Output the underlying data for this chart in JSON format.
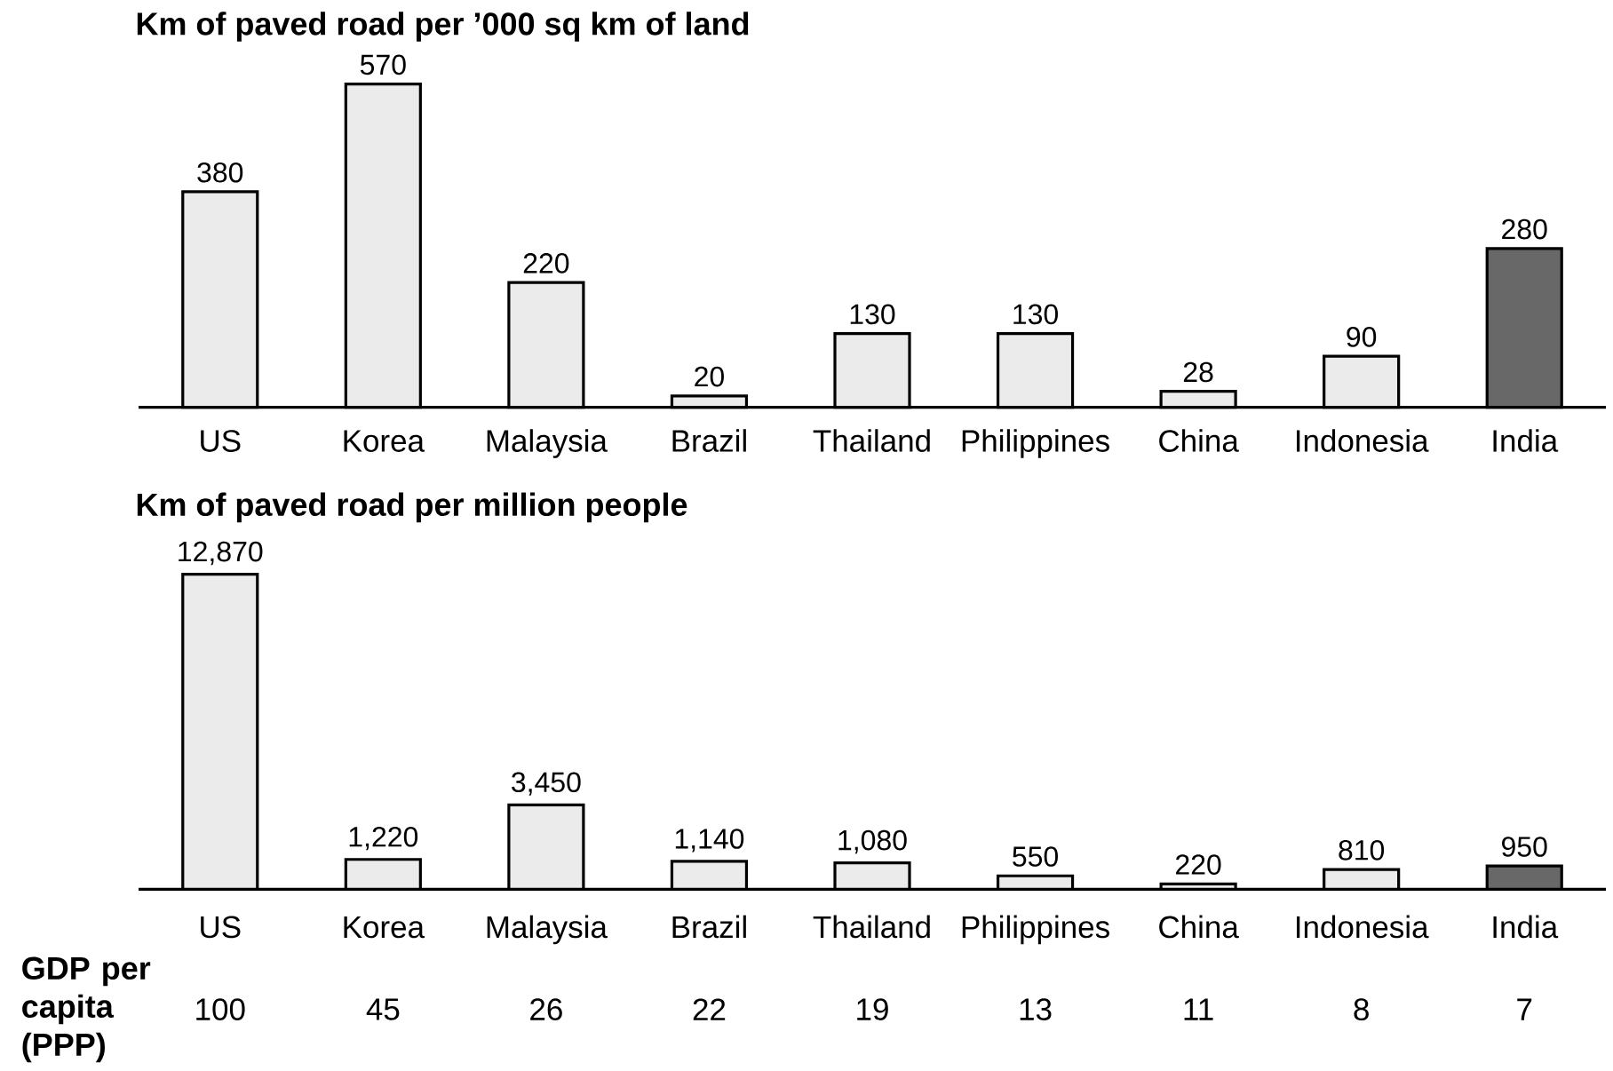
{
  "chart_data": [
    {
      "type": "bar",
      "title": "Km of paved road per ’000 sq km of land",
      "categories": [
        "US",
        "Korea",
        "Malaysia",
        "Brazil",
        "Thailand",
        "Philippines",
        "China",
        "Indonesia",
        "India"
      ],
      "values": [
        380,
        570,
        220,
        20,
        130,
        130,
        28,
        90,
        280
      ],
      "colors": [
        "#ebebeb",
        "#ebebeb",
        "#ebebeb",
        "#ebebeb",
        "#ebebeb",
        "#ebebeb",
        "#ebebeb",
        "#ebebeb",
        "#686868"
      ],
      "data_labels": true
    },
    {
      "type": "bar",
      "title": "Km of paved road per million people",
      "categories": [
        "US",
        "Korea",
        "Malaysia",
        "Brazil",
        "Thailand",
        "Philippines",
        "China",
        "Indonesia",
        "India"
      ],
      "values": [
        12870,
        1220,
        3450,
        1140,
        1080,
        550,
        220,
        810,
        950
      ],
      "value_labels": [
        "12,870",
        "1,220",
        "3,450",
        "1,140",
        "1,080",
        "550",
        "220",
        "810",
        "950"
      ],
      "colors": [
        "#ebebeb",
        "#ebebeb",
        "#ebebeb",
        "#ebebeb",
        "#ebebeb",
        "#ebebeb",
        "#ebebeb",
        "#ebebeb",
        "#686868"
      ]
    },
    {
      "type": "other",
      "title": "GDP per capita (PPP)",
      "categories": [
        null,
        null,
        null,
        null,
        null,
        null,
        null,
        null,
        null
      ],
      "values": [
        100,
        45,
        26,
        22,
        19,
        13,
        11,
        8,
        7
      ],
      "data_labels": true
    }
  ]
}
